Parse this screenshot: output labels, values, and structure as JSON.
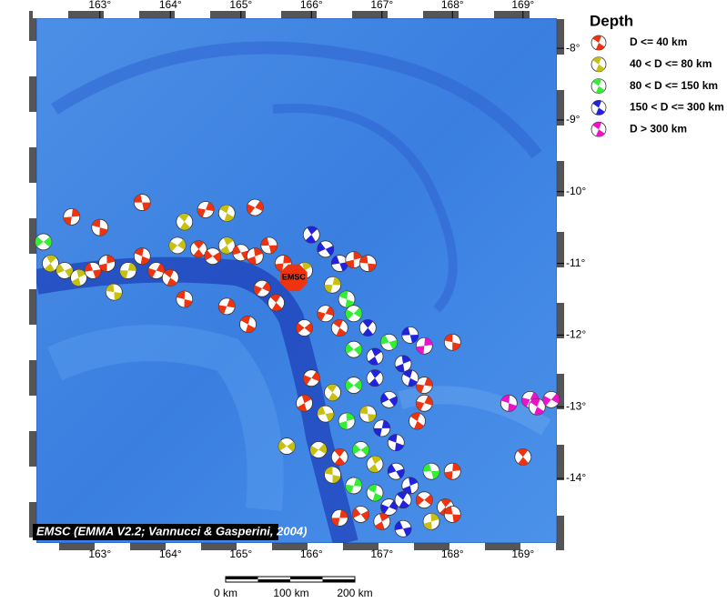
{
  "map": {
    "lon_range": [
      162.1,
      169.48
    ],
    "lat_range": [
      -14.9,
      -7.58
    ],
    "lon_ticks": [
      {
        "value": 163,
        "label": "163°"
      },
      {
        "value": 164,
        "label": "164°"
      },
      {
        "value": 165,
        "label": "165°"
      },
      {
        "value": 166,
        "label": "166°"
      },
      {
        "value": 167,
        "label": "167°"
      },
      {
        "value": 168,
        "label": "168°"
      },
      {
        "value": 169,
        "label": "169°"
      }
    ],
    "lat_ticks": [
      {
        "value": -8,
        "label": "-8°"
      },
      {
        "value": -9,
        "label": "-9°"
      },
      {
        "value": -10,
        "label": "-10°"
      },
      {
        "value": -11,
        "label": "-11°"
      },
      {
        "value": -12,
        "label": "-12°"
      },
      {
        "value": -13,
        "label": "-13°"
      },
      {
        "value": -14,
        "label": "-14°"
      }
    ],
    "epicenter": {
      "lon": 165.75,
      "lat": -11.2,
      "label": "EMSC"
    },
    "credit": "EMSC (EMMA V2.2; Vannucci & Gasperini, 2004)",
    "events": [
      [
        163.6,
        -10.15,
        0
      ],
      [
        162.6,
        -10.35,
        0
      ],
      [
        163.0,
        -10.5,
        0
      ],
      [
        164.5,
        -10.25,
        0
      ],
      [
        164.8,
        -10.3,
        1
      ],
      [
        165.2,
        -10.22,
        0
      ],
      [
        164.2,
        -10.42,
        1
      ],
      [
        162.2,
        -10.7,
        2
      ],
      [
        162.3,
        -11.0,
        1
      ],
      [
        162.5,
        -11.1,
        1
      ],
      [
        162.7,
        -11.2,
        1
      ],
      [
        162.9,
        -11.1,
        0
      ],
      [
        163.1,
        -11.0,
        0
      ],
      [
        163.2,
        -11.4,
        1
      ],
      [
        163.4,
        -11.1,
        1
      ],
      [
        163.6,
        -10.9,
        0
      ],
      [
        163.8,
        -11.1,
        0
      ],
      [
        164.0,
        -11.2,
        0
      ],
      [
        164.1,
        -10.75,
        1
      ],
      [
        164.4,
        -10.8,
        0
      ],
      [
        164.6,
        -10.9,
        0
      ],
      [
        164.8,
        -10.75,
        1
      ],
      [
        165.0,
        -10.85,
        0
      ],
      [
        165.2,
        -10.9,
        0
      ],
      [
        165.4,
        -10.75,
        0
      ],
      [
        165.6,
        -11.0,
        0
      ],
      [
        164.2,
        -11.5,
        0
      ],
      [
        164.8,
        -11.6,
        0
      ],
      [
        165.1,
        -11.85,
        0
      ],
      [
        165.3,
        -11.35,
        0
      ],
      [
        165.5,
        -11.55,
        0
      ],
      [
        165.9,
        -11.9,
        0
      ],
      [
        166.0,
        -10.6,
        3
      ],
      [
        166.2,
        -10.8,
        3
      ],
      [
        165.9,
        -11.1,
        1
      ],
      [
        166.4,
        -11.0,
        3
      ],
      [
        166.6,
        -10.95,
        0
      ],
      [
        166.8,
        -11.0,
        0
      ],
      [
        166.3,
        -11.3,
        1
      ],
      [
        166.5,
        -11.5,
        2
      ],
      [
        166.2,
        -11.7,
        0
      ],
      [
        166.4,
        -11.9,
        0
      ],
      [
        166.6,
        -11.7,
        2
      ],
      [
        166.8,
        -11.9,
        3
      ],
      [
        166.6,
        -12.2,
        2
      ],
      [
        166.9,
        -12.3,
        3
      ],
      [
        167.1,
        -12.1,
        2
      ],
      [
        167.3,
        -12.4,
        3
      ],
      [
        167.4,
        -12.0,
        3
      ],
      [
        167.6,
        -12.15,
        4
      ],
      [
        168.0,
        -12.1,
        0
      ],
      [
        167.6,
        -12.7,
        0
      ],
      [
        167.4,
        -12.6,
        3
      ],
      [
        166.0,
        -12.6,
        0
      ],
      [
        166.3,
        -12.8,
        1
      ],
      [
        166.6,
        -12.7,
        2
      ],
      [
        166.9,
        -12.6,
        3
      ],
      [
        167.1,
        -12.9,
        3
      ],
      [
        165.9,
        -12.95,
        0
      ],
      [
        166.2,
        -13.1,
        1
      ],
      [
        166.5,
        -13.2,
        2
      ],
      [
        166.8,
        -13.1,
        1
      ],
      [
        167.0,
        -13.3,
        3
      ],
      [
        167.2,
        -13.5,
        3
      ],
      [
        167.6,
        -12.95,
        0
      ],
      [
        167.5,
        -13.2,
        0
      ],
      [
        166.1,
        -13.6,
        1
      ],
      [
        166.4,
        -13.7,
        0
      ],
      [
        166.7,
        -13.6,
        2
      ],
      [
        166.9,
        -13.8,
        1
      ],
      [
        167.2,
        -13.9,
        3
      ],
      [
        167.4,
        -14.1,
        3
      ],
      [
        167.7,
        -13.9,
        2
      ],
      [
        168.0,
        -13.9,
        0
      ],
      [
        166.3,
        -13.95,
        1
      ],
      [
        166.6,
        -14.1,
        2
      ],
      [
        166.9,
        -14.2,
        2
      ],
      [
        167.1,
        -14.4,
        3
      ],
      [
        167.3,
        -14.3,
        3
      ],
      [
        167.6,
        -14.3,
        0
      ],
      [
        167.9,
        -14.4,
        0
      ],
      [
        166.7,
        -14.5,
        0
      ],
      [
        167.0,
        -14.6,
        0
      ],
      [
        167.3,
        -14.7,
        3
      ],
      [
        167.7,
        -14.6,
        1
      ],
      [
        168.0,
        -14.5,
        0
      ],
      [
        166.4,
        -14.55,
        0
      ],
      [
        168.8,
        -12.95,
        4
      ],
      [
        169.1,
        -12.9,
        4
      ],
      [
        169.2,
        -13.0,
        4
      ],
      [
        169.4,
        -12.9,
        4
      ],
      [
        169.0,
        -13.7,
        0
      ],
      [
        165.65,
        -13.55,
        1
      ]
    ]
  },
  "legend": {
    "title": "Depth",
    "entries": [
      {
        "label": "D <= 40 km",
        "color": "#ee3311"
      },
      {
        "label": "40 < D <= 80 km",
        "color": "#c8c010"
      },
      {
        "label": "80 < D <= 150 km",
        "color": "#33ee33"
      },
      {
        "label": "150 < D <= 300 km",
        "color": "#2222dd"
      },
      {
        "label": "D > 300 km",
        "color": "#ee11cc"
      }
    ]
  },
  "scale": {
    "labels": [
      "0 km",
      "100 km",
      "200 km"
    ]
  }
}
